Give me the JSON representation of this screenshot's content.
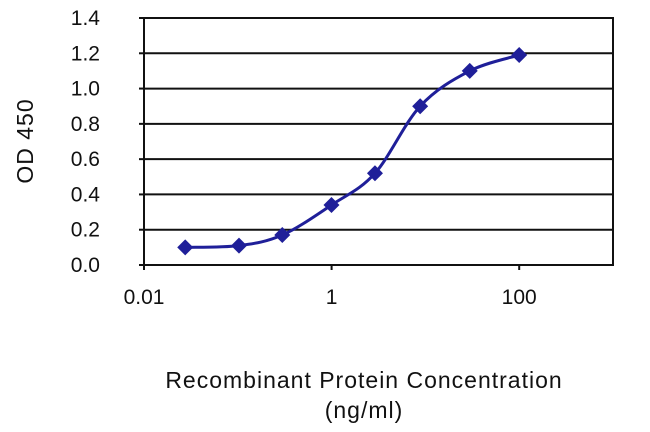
{
  "chart_data": {
    "type": "line",
    "title": "",
    "xlabel_line1": "Recombinant Protein Concentration",
    "xlabel_line2": "(ng/ml)",
    "ylabel": "OD 450",
    "x_scale": "log",
    "xlim": [
      0.01,
      1000
    ],
    "ylim": [
      0,
      1.4
    ],
    "xticks": [
      {
        "value": 0.01,
        "label": "0.01"
      },
      {
        "value": 1,
        "label": "1"
      },
      {
        "value": 100,
        "label": "100"
      }
    ],
    "yticks": [
      {
        "value": 0.0,
        "label": "0.0"
      },
      {
        "value": 0.2,
        "label": "0.2"
      },
      {
        "value": 0.4,
        "label": "0.4"
      },
      {
        "value": 0.6,
        "label": "0.6"
      },
      {
        "value": 0.8,
        "label": "0.8"
      },
      {
        "value": 1.0,
        "label": "1.0"
      },
      {
        "value": 1.2,
        "label": "1.2"
      },
      {
        "value": 1.4,
        "label": "1.4"
      }
    ],
    "grid": "horizontal",
    "series": [
      {
        "color": "#1f1f99",
        "marker": "diamond",
        "x": [
          0.0275,
          0.103,
          0.298,
          0.997,
          2.9,
          8.79,
          29.7,
          100
        ],
        "y": [
          0.1,
          0.11,
          0.17,
          0.34,
          0.52,
          0.9,
          1.1,
          1.19
        ]
      }
    ]
  }
}
